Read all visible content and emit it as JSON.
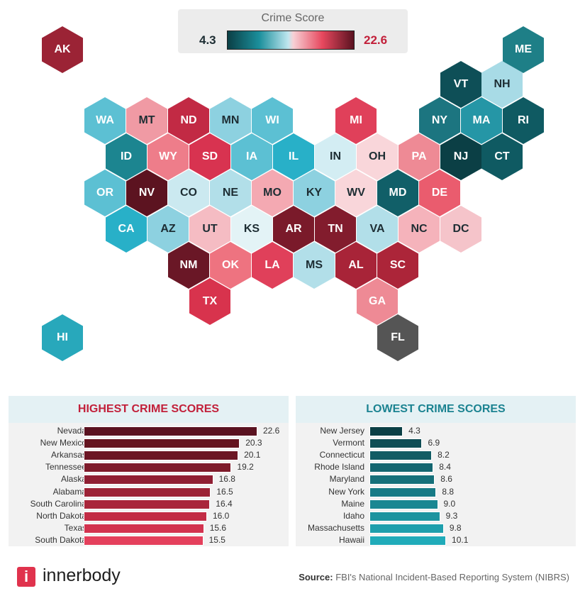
{
  "legend": {
    "title": "Crime Score",
    "min": "4.3",
    "max": "22.6"
  },
  "states": [
    {
      "abbr": "AK",
      "color": "#9b2335"
    },
    {
      "abbr": "ME",
      "color": "#1e7f87"
    },
    {
      "abbr": "VT",
      "color": "#0e4f57"
    },
    {
      "abbr": "NH",
      "color": "#a8dbe6"
    },
    {
      "abbr": "WA",
      "color": "#5cc0d3"
    },
    {
      "abbr": "MT",
      "color": "#f09aa4"
    },
    {
      "abbr": "ND",
      "color": "#c22a44"
    },
    {
      "abbr": "MN",
      "color": "#8dd1e0"
    },
    {
      "abbr": "WI",
      "color": "#5cc0d3"
    },
    {
      "abbr": "MI",
      "color": "#e0405a"
    },
    {
      "abbr": "NY",
      "color": "#1c7580"
    },
    {
      "abbr": "MA",
      "color": "#2596a6"
    },
    {
      "abbr": "RI",
      "color": "#0f5a62"
    },
    {
      "abbr": "ID",
      "color": "#1c8590"
    },
    {
      "abbr": "WY",
      "color": "#ee7d8a"
    },
    {
      "abbr": "SD",
      "color": "#d83350"
    },
    {
      "abbr": "IA",
      "color": "#5cc0d3"
    },
    {
      "abbr": "IL",
      "color": "#28b0c8"
    },
    {
      "abbr": "IN",
      "color": "#d3edf3"
    },
    {
      "abbr": "OH",
      "color": "#f9d6da"
    },
    {
      "abbr": "PA",
      "color": "#ee8a95"
    },
    {
      "abbr": "NJ",
      "color": "#0b3f45"
    },
    {
      "abbr": "CT",
      "color": "#0f5a62"
    },
    {
      "abbr": "OR",
      "color": "#5cc0d3"
    },
    {
      "abbr": "NV",
      "color": "#5c1320"
    },
    {
      "abbr": "CO",
      "color": "#cbe9f0"
    },
    {
      "abbr": "NE",
      "color": "#b2dfe9"
    },
    {
      "abbr": "MO",
      "color": "#f4a9b2"
    },
    {
      "abbr": "KY",
      "color": "#8dd1e0"
    },
    {
      "abbr": "WV",
      "color": "#f9d6da"
    },
    {
      "abbr": "MD",
      "color": "#115f68"
    },
    {
      "abbr": "DE",
      "color": "#ea5c6e"
    },
    {
      "abbr": "CA",
      "color": "#28b0c8"
    },
    {
      "abbr": "AZ",
      "color": "#8dd1e0"
    },
    {
      "abbr": "UT",
      "color": "#f5bcc3"
    },
    {
      "abbr": "KS",
      "color": "#e3f3f6"
    },
    {
      "abbr": "AR",
      "color": "#7a1a2a"
    },
    {
      "abbr": "TN",
      "color": "#821c2d"
    },
    {
      "abbr": "VA",
      "color": "#b2dfe9"
    },
    {
      "abbr": "NC",
      "color": "#f5b3bb"
    },
    {
      "abbr": "DC",
      "color": "#f5c4ca"
    },
    {
      "abbr": "NM",
      "color": "#6a1726"
    },
    {
      "abbr": "OK",
      "color": "#ee7380"
    },
    {
      "abbr": "LA",
      "color": "#e0405a"
    },
    {
      "abbr": "MS",
      "color": "#b2dfe9"
    },
    {
      "abbr": "AL",
      "color": "#a82438"
    },
    {
      "abbr": "SC",
      "color": "#ac2539"
    },
    {
      "abbr": "TX",
      "color": "#d8334d"
    },
    {
      "abbr": "GA",
      "color": "#ee8a95"
    },
    {
      "abbr": "HI",
      "color": "#28a8bb"
    },
    {
      "abbr": "FL",
      "color": "#555555"
    }
  ],
  "chart_data": [
    {
      "type": "bar",
      "title": "HIGHEST CRIME SCORES",
      "title_color": "#c2203a",
      "categories": [
        "Nevada",
        "New Mexico",
        "Arkansas",
        "Tennessee",
        "Alaska",
        "Alabama",
        "South Carolina",
        "North Dakota",
        "Texas",
        "South Dakota"
      ],
      "values": [
        22.6,
        20.3,
        20.1,
        19.2,
        16.8,
        16.5,
        16.4,
        16.0,
        15.6,
        15.5
      ],
      "value_labels": [
        "22.6",
        "20.3",
        "20.1",
        "19.2",
        "16.8",
        "16.5",
        "16.4",
        "16.0",
        "15.6",
        "15.5"
      ],
      "colors": [
        "#5a1220",
        "#65141f",
        "#6c1624",
        "#7e1b2b",
        "#8f1f33",
        "#9c2336",
        "#a9263b",
        "#c22c45",
        "#d2334f",
        "#e4405c"
      ]
    },
    {
      "type": "bar",
      "title": "LOWEST CRIME SCORES",
      "title_color": "#1b8391",
      "categories": [
        "New Jersey",
        "Vermont",
        "Connecticut",
        "Rhode Island",
        "Maryland",
        "New York",
        "Maine",
        "Idaho",
        "Massachusetts",
        "Hawaii"
      ],
      "values": [
        4.3,
        6.9,
        8.2,
        8.4,
        8.6,
        8.8,
        9.0,
        9.3,
        9.8,
        10.1
      ],
      "value_labels": [
        "4.3",
        "6.9",
        "8.2",
        "8.4",
        "8.6",
        "8.8",
        "9.0",
        "9.3",
        "9.8",
        "10.1"
      ],
      "colors": [
        "#0b3f45",
        "#0f4e55",
        "#125c64",
        "#146670",
        "#16707a",
        "#187b86",
        "#1a8792",
        "#1c939f",
        "#1e9fac",
        "#20abb9"
      ]
    }
  ],
  "footer": {
    "logo_letter": "i",
    "brand": "innerbody",
    "source_label": "Source:",
    "source_text": " FBI's National Incident-Based Reporting System (NIBRS)"
  }
}
